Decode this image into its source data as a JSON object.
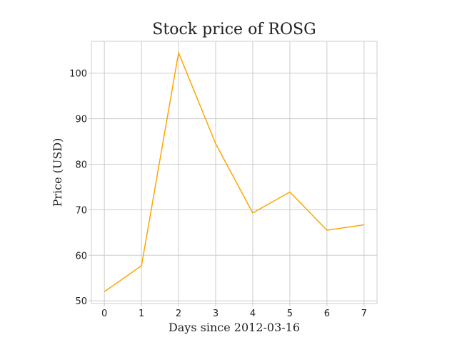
{
  "chart_data": {
    "type": "line",
    "title": "Stock price of ROSG",
    "xlabel": "Days since 2012-03-16",
    "ylabel": "Price (USD)",
    "x": [
      0,
      1,
      2,
      3,
      4,
      5,
      6,
      7
    ],
    "series": [
      {
        "values": [
          52.0,
          57.7,
          104.5,
          84.5,
          69.3,
          73.9,
          65.5,
          66.7
        ],
        "color": "#ffa500"
      }
    ],
    "xticks": [
      0,
      1,
      2,
      3,
      4,
      5,
      6,
      7
    ],
    "yticks": [
      50,
      60,
      70,
      80,
      90,
      100
    ],
    "xlim": [
      -0.35,
      7.35
    ],
    "ylim": [
      49.4,
      107.0
    ],
    "grid": true,
    "legend": false
  }
}
